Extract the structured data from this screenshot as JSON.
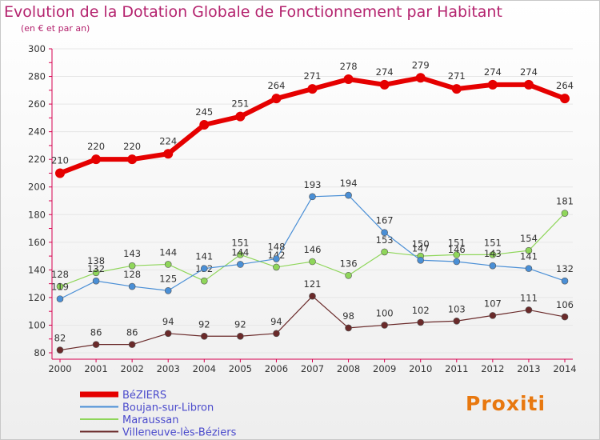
{
  "header": {
    "title": "Evolution de la Dotation Globale de Fonctionnement par Habitant",
    "subtitle": "(en € et par an)"
  },
  "brand": {
    "text": "Proxiti"
  },
  "colors": {
    "axis": "#d7004f",
    "grid": "#e6e6e6",
    "brand": "#e8780f"
  },
  "chart_data": {
    "type": "line",
    "title": "Evolution de la Dotation Globale de Fonctionnement par Habitant",
    "subtitle": "(en € et par an)",
    "x": [
      2000,
      2001,
      2002,
      2003,
      2004,
      2005,
      2006,
      2007,
      2008,
      2009,
      2010,
      2011,
      2012,
      2013,
      2014
    ],
    "ylim": [
      80,
      300
    ],
    "yticks": [
      80,
      100,
      120,
      140,
      160,
      180,
      200,
      220,
      240,
      260,
      280,
      300
    ],
    "grid": true,
    "legend_position": "bottom-left",
    "series": [
      {
        "name": "BéZIERS",
        "color": "#e50000",
        "values": [
          210,
          220,
          220,
          224,
          245,
          251,
          264,
          271,
          278,
          274,
          279,
          271,
          274,
          274,
          264
        ]
      },
      {
        "name": "Boujan-sur-Libron",
        "color": "#4a8fd6",
        "values": [
          119,
          132,
          128,
          125,
          141,
          144,
          148,
          193,
          194,
          167,
          147,
          146,
          143,
          141,
          132
        ]
      },
      {
        "name": "Maraussan",
        "color": "#8fd65a",
        "values": [
          128,
          138,
          143,
          144,
          132,
          151,
          142,
          146,
          136,
          153,
          150,
          151,
          151,
          154,
          181
        ]
      },
      {
        "name": "Villeneuve-lès-Béziers",
        "color": "#6a2a2a",
        "values": [
          82,
          86,
          86,
          94,
          92,
          92,
          94,
          121,
          98,
          100,
          102,
          103,
          107,
          111,
          106
        ]
      }
    ]
  }
}
